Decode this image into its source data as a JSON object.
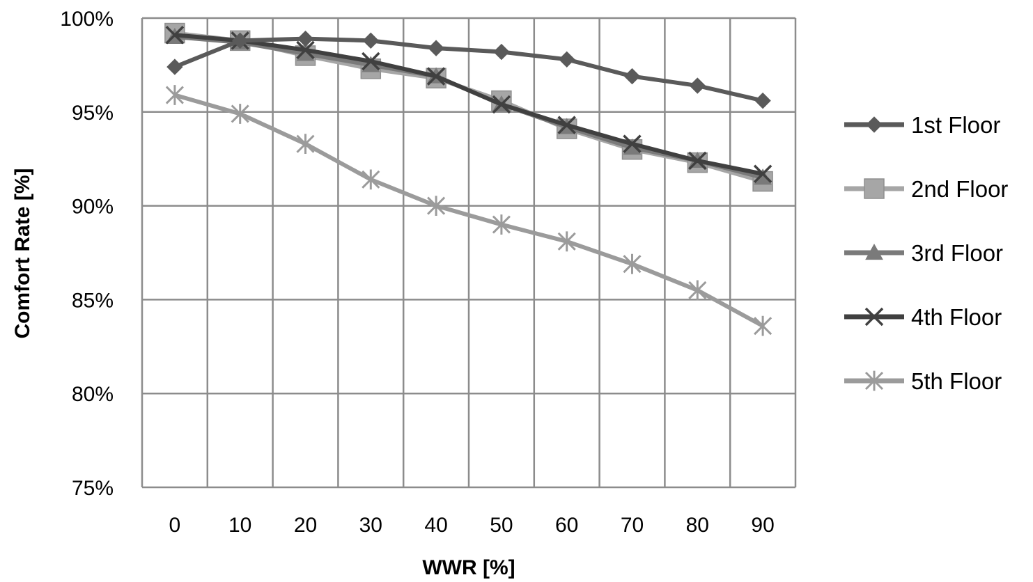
{
  "chart_data": {
    "type": "line",
    "xlabel": "WWR [%]",
    "ylabel": "Comfort Rate [%]",
    "x": [
      0,
      10,
      20,
      30,
      40,
      50,
      60,
      70,
      80,
      90
    ],
    "x_tick_labels": [
      "0",
      "10",
      "20",
      "30",
      "40",
      "50",
      "60",
      "70",
      "80",
      "90"
    ],
    "ylim": [
      75,
      100
    ],
    "y_ticks": [
      75,
      80,
      85,
      90,
      95,
      100
    ],
    "y_tick_labels": [
      "75%",
      "80%",
      "85%",
      "90%",
      "95%",
      "100%"
    ],
    "grid": true,
    "legend_position": "right",
    "series": [
      {
        "name": "1st Floor",
        "marker": "diamond",
        "color": "#5a5a5a",
        "values": [
          97.4,
          98.8,
          98.9,
          98.8,
          98.4,
          98.2,
          97.8,
          96.9,
          96.4,
          95.6
        ]
      },
      {
        "name": "2nd Floor",
        "marker": "square",
        "color": "#a6a6a6",
        "values": [
          99.2,
          98.8,
          98.0,
          97.3,
          96.8,
          95.6,
          94.1,
          93.0,
          92.3,
          91.3
        ]
      },
      {
        "name": "3rd Floor",
        "marker": "triangle",
        "color": "#7a7a7a",
        "values": [
          99.0,
          98.7,
          98.1,
          97.5,
          96.9,
          95.4,
          94.2,
          93.1,
          92.4,
          91.5
        ]
      },
      {
        "name": "4th Floor",
        "marker": "x",
        "color": "#404040",
        "values": [
          99.1,
          98.8,
          98.3,
          97.7,
          96.9,
          95.4,
          94.3,
          93.3,
          92.4,
          91.7
        ]
      },
      {
        "name": "5th Floor",
        "marker": "star",
        "color": "#9b9b9b",
        "values": [
          95.9,
          94.9,
          93.3,
          91.4,
          90.0,
          89.0,
          88.1,
          86.9,
          85.5,
          83.6
        ]
      }
    ]
  }
}
